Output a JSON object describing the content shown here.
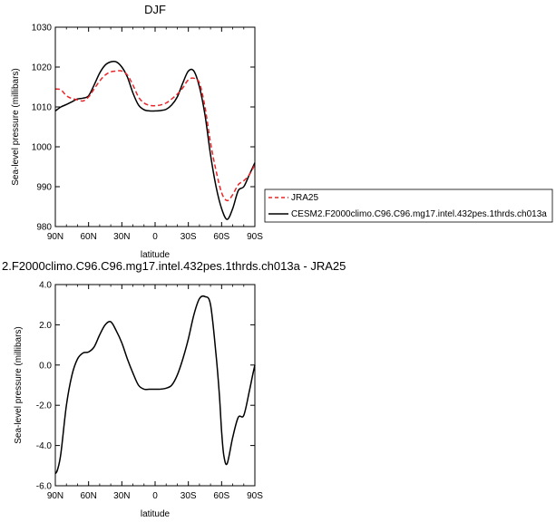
{
  "chart_data": [
    {
      "type": "line",
      "title": "DJF",
      "xlabel": "latitude",
      "ylabel": "Sea-level pressure (millibars)",
      "xlim": [
        90,
        -90
      ],
      "ylim": [
        980,
        1030
      ],
      "x_ticks": [
        90,
        60,
        30,
        0,
        -30,
        -60,
        -90
      ],
      "x_tick_labels": [
        "90N",
        "60N",
        "30N",
        "0",
        "30S",
        "60S",
        "90S"
      ],
      "y_ticks": [
        980,
        990,
        1000,
        1010,
        1020,
        1030
      ],
      "y_tick_labels": [
        "980",
        "990",
        "1000",
        "1010",
        "1020",
        "1030"
      ],
      "legend_position": "right",
      "series": [
        {
          "name": "JRA25",
          "color": "#e8262a",
          "dash": "dashed",
          "x": [
            90,
            85,
            80,
            75,
            70,
            65,
            60,
            55,
            50,
            45,
            40,
            35,
            30,
            25,
            20,
            15,
            10,
            5,
            0,
            -5,
            -10,
            -15,
            -20,
            -25,
            -30,
            -35,
            -40,
            -45,
            -50,
            -55,
            -60,
            -65,
            -70,
            -75,
            -80,
            -85,
            -90
          ],
          "y": [
            1014.5,
            1014.3,
            1012.8,
            1012.1,
            1011.8,
            1011.5,
            1012.5,
            1014.5,
            1016.5,
            1018.0,
            1018.8,
            1019.0,
            1019.0,
            1018.0,
            1015.5,
            1012.5,
            1011.0,
            1010.4,
            1010.3,
            1010.5,
            1011.0,
            1012.0,
            1013.2,
            1014.8,
            1016.8,
            1017.2,
            1016.0,
            1010.0,
            1001.0,
            994.0,
            988.5,
            986.5,
            988.0,
            990.5,
            991.5,
            993.0,
            995.5
          ]
        },
        {
          "name": "CESM2.F2000climo.C96.C96.mg17.intel.432pes.1thrds.ch013a",
          "color": "#000000",
          "dash": "solid",
          "x": [
            90,
            85,
            80,
            75,
            70,
            65,
            60,
            55,
            50,
            45,
            40,
            35,
            30,
            25,
            20,
            15,
            10,
            5,
            0,
            -5,
            -10,
            -15,
            -20,
            -25,
            -30,
            -35,
            -40,
            -45,
            -50,
            -55,
            -60,
            -65,
            -70,
            -75,
            -80,
            -85,
            -90
          ],
          "y": [
            1009.0,
            1010.0,
            1010.6,
            1011.3,
            1012.0,
            1012.2,
            1012.8,
            1015.5,
            1018.5,
            1020.5,
            1021.3,
            1021.3,
            1020.0,
            1017.5,
            1013.5,
            1010.5,
            1009.3,
            1009.0,
            1009.0,
            1009.1,
            1009.4,
            1010.5,
            1012.5,
            1016.0,
            1019.0,
            1019.0,
            1015.0,
            1008.0,
            998.0,
            990.0,
            984.5,
            981.8,
            984.5,
            989.0,
            990.0,
            993.0,
            996.0
          ]
        }
      ]
    },
    {
      "type": "line",
      "title": "2.F2000climo.C96.C96.mg17.intel.432pes.1thrds.ch013a - JRA25",
      "xlabel": "latitude",
      "ylabel": "Sea-level pressure (millibars)",
      "xlim": [
        90,
        -90
      ],
      "ylim": [
        -6.0,
        4.0
      ],
      "x_ticks": [
        90,
        60,
        30,
        0,
        -30,
        -60,
        -90
      ],
      "x_tick_labels": [
        "90N",
        "60N",
        "30N",
        "0",
        "30S",
        "60S",
        "90S"
      ],
      "y_ticks": [
        -6.0,
        -4.0,
        -2.0,
        0.0,
        2.0,
        4.0
      ],
      "y_tick_labels": [
        "-6.0",
        "-4.0",
        "-2.0",
        "0.0",
        "2.0",
        "4.0"
      ],
      "series": [
        {
          "color": "#000000",
          "dash": "solid",
          "x": [
            90,
            88,
            85,
            80,
            75,
            70,
            65,
            60,
            55,
            50,
            45,
            40,
            35,
            30,
            25,
            20,
            15,
            10,
            5,
            0,
            -5,
            -10,
            -15,
            -20,
            -25,
            -30,
            -35,
            -40,
            -45,
            -50,
            -55,
            -58,
            -60,
            -62,
            -65,
            -70,
            -75,
            -80,
            -85,
            -88,
            -90
          ],
          "y": [
            -5.4,
            -5.2,
            -4.4,
            -2.0,
            -0.5,
            0.3,
            0.6,
            0.65,
            0.9,
            1.5,
            2.0,
            2.15,
            1.7,
            1.1,
            0.3,
            -0.4,
            -1.0,
            -1.2,
            -1.2,
            -1.2,
            -1.2,
            -1.15,
            -1.0,
            -0.5,
            0.3,
            1.3,
            2.5,
            3.3,
            3.4,
            3.0,
            0.5,
            -1.5,
            -3.3,
            -4.5,
            -4.9,
            -3.6,
            -2.6,
            -2.5,
            -1.3,
            -0.5,
            0.0
          ]
        }
      ]
    }
  ]
}
